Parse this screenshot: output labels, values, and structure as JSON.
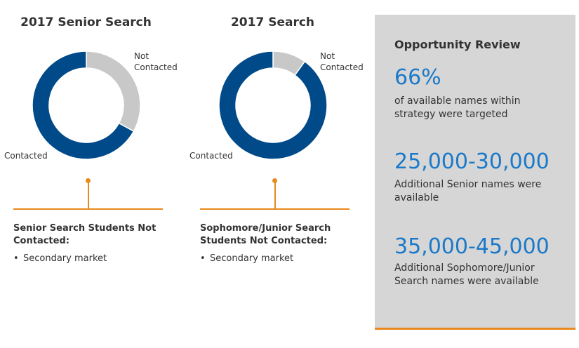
{
  "colors": {
    "contacted": "#004a8a",
    "not_contacted": "#c8c8c8",
    "accent": "#e8891c",
    "stat": "#1a79c9"
  },
  "chart_data": [
    {
      "type": "pie",
      "title": "2017 Senior Search",
      "slices": [
        {
          "label": "Contacted",
          "value": 67
        },
        {
          "label": "Not Contacted",
          "value": 33
        }
      ]
    },
    {
      "type": "pie",
      "title": "2017 Search",
      "slices": [
        {
          "label": "Contacted",
          "value": 90
        },
        {
          "label": "Not Contacted",
          "value": 10
        }
      ]
    }
  ],
  "senior": {
    "heading": "Senior Search Students Not Contacted:",
    "bullet": "Secondary market"
  },
  "soph": {
    "heading": "Sophomore/Junior Search Students Not Contacted:",
    "bullet": "Secondary market"
  },
  "panel": {
    "title": "Opportunity Review",
    "stats": [
      {
        "value": "66%",
        "desc": "of available names within strategy were targeted"
      },
      {
        "value": "25,000-30,000",
        "desc": "Additional Senior names were available"
      },
      {
        "value": "35,000-45,000",
        "desc": "Additional Sophomore/Junior Search names were available"
      }
    ]
  }
}
